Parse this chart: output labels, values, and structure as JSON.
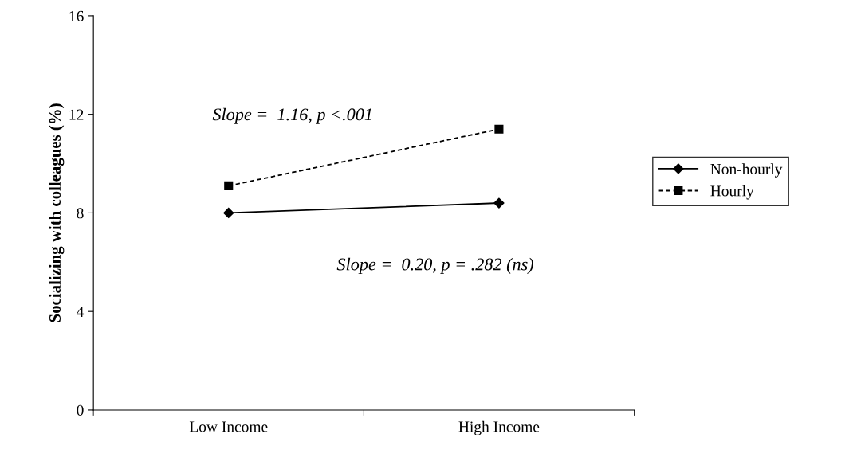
{
  "chart_data": {
    "type": "line",
    "ylabel": "Socializing with colleagues (%)",
    "categories": [
      "Low Income",
      "High Income"
    ],
    "series": [
      {
        "name": "Non-hourly",
        "color": "#000000",
        "values": [
          8.0,
          8.4
        ],
        "marker": "diamond",
        "line_style": "solid"
      },
      {
        "name": "Hourly",
        "color": "#000000",
        "values": [
          9.1,
          11.4
        ],
        "marker": "square",
        "line_style": "dashed"
      }
    ],
    "ylim": [
      0,
      16
    ],
    "yticks": [
      0,
      4,
      8,
      12,
      16
    ],
    "grid": false,
    "legend": "right",
    "annotations": [
      "Slope =  1.16, p <.001",
      "Slope =  0.20, p = .282 (ns)"
    ]
  }
}
